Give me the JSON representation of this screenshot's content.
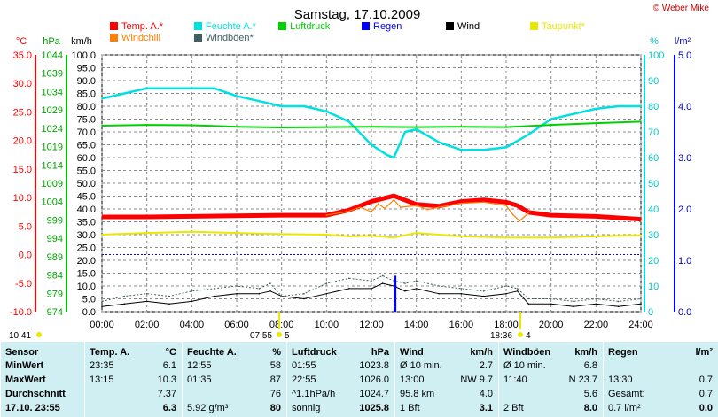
{
  "header": {
    "title": "Samstag, 17.10.2009",
    "copyright": "© Weber Mike",
    "sunrise_label": "10:41",
    "sunrise_marker": "07:55",
    "sunrise_value": "5",
    "sunset_marker": "18:36",
    "sunset_value": "4"
  },
  "colors": {
    "temp": "#ff0000",
    "humidity": "#00e0e0",
    "pressure": "#00d000",
    "rain": "#0000ff",
    "wind": "#000000",
    "dewpoint": "#e8e800",
    "windchill": "#ff8000",
    "gust": "#406060"
  },
  "legend": [
    {
      "label": "Temp. A.*",
      "color": "#ff0000",
      "col": 0,
      "row": 0
    },
    {
      "label": "Feuchte A.*",
      "color": "#00e0e0",
      "col": 1,
      "row": 0
    },
    {
      "label": "Luftdruck",
      "color": "#00d000",
      "col": 2,
      "row": 0
    },
    {
      "label": "Regen",
      "color": "#0000ff",
      "col": 3,
      "row": 0
    },
    {
      "label": "Wind",
      "color": "#000000",
      "col": 4,
      "row": 0
    },
    {
      "label": "Taupunkt*",
      "color": "#e8e800",
      "col": 5,
      "row": 0
    },
    {
      "label": "Windchill",
      "color": "#ff8000",
      "col": 0,
      "row": 1
    },
    {
      "label": "Windböen*",
      "color": "#406060",
      "col": 1,
      "row": 1
    }
  ],
  "chart_data": {
    "type": "line",
    "title": "Samstag, 17.10.2009",
    "axes": {
      "temp": {
        "unit": "°C",
        "range": [
          -10,
          35
        ],
        "ticks": [
          "35.0",
          "30.0",
          "25.0",
          "20.0",
          "15.0",
          "10.0",
          "5.0",
          "0.0",
          "-5.0",
          "-10.0"
        ]
      },
      "pressure": {
        "unit": "hPa",
        "range": [
          974,
          1044
        ],
        "ticks": [
          "1044",
          "1039",
          "1034",
          "1029",
          "1024",
          "1019",
          "1014",
          "1009",
          "1004",
          "999",
          "994",
          "989",
          "984",
          "979",
          "974"
        ]
      },
      "wind": {
        "unit": "km/h",
        "range": [
          0,
          100
        ],
        "ticks": [
          "100.0",
          "95.0",
          "90.0",
          "85.0",
          "80.0",
          "75.0",
          "70.0",
          "65.0",
          "60.0",
          "55.0",
          "50.0",
          "45.0",
          "40.0",
          "35.0",
          "30.0",
          "25.0",
          "20.0",
          "15.0",
          "10.0",
          "5.0",
          "0.0"
        ]
      },
      "humidity": {
        "unit": "%",
        "range": [
          0,
          100
        ],
        "ticks": [
          "100",
          "90",
          "80",
          "70",
          "60",
          "50",
          "40",
          "30",
          "20",
          "10",
          "0"
        ]
      },
      "rain": {
        "unit": "l/m²",
        "range": [
          0,
          5
        ],
        "ticks": [
          "5.0",
          "4.0",
          "3.0",
          "2.0",
          "1.0",
          "0.0"
        ]
      },
      "x": {
        "ticks": [
          "00:00",
          "02:00",
          "04:00",
          "06:00",
          "08:00",
          "10:00",
          "12:00",
          "14:00",
          "16:00",
          "18:00",
          "20:00",
          "22:00",
          "24:00"
        ],
        "range": [
          0,
          24
        ]
      }
    },
    "grid": true,
    "series": [
      {
        "name": "Temp. A.*",
        "axis": "temp",
        "color": "#ff0000",
        "x": [
          0,
          2,
          4,
          6,
          8,
          10,
          11,
          12,
          13,
          14,
          15,
          16,
          17,
          18,
          18.5,
          19,
          20,
          22,
          24
        ],
        "y": [
          6.6,
          6.6,
          6.7,
          6.8,
          6.9,
          6.9,
          7.8,
          9.3,
          10.3,
          8.8,
          8.5,
          9.3,
          9.6,
          9.2,
          8.6,
          7.4,
          6.9,
          6.7,
          6.2
        ]
      },
      {
        "name": "Feuchte A.*",
        "axis": "humidity",
        "color": "#00e0e0",
        "x": [
          0,
          2,
          3,
          4,
          5,
          6,
          7,
          8,
          9,
          10,
          11,
          12,
          12.7,
          13,
          13.5,
          14,
          15,
          16,
          17,
          18,
          19,
          20,
          21,
          22,
          23,
          24
        ],
        "y": [
          83,
          87,
          87,
          87,
          87,
          84,
          82,
          80,
          80,
          78,
          74,
          65,
          61,
          60,
          70,
          71,
          66,
          63,
          63,
          64,
          69,
          75,
          77,
          79,
          80,
          80
        ]
      },
      {
        "name": "Luftdruck",
        "axis": "pressure",
        "color": "#00d000",
        "x": [
          0,
          2,
          4,
          6,
          8,
          10,
          12,
          14,
          16,
          18,
          20,
          22,
          24
        ],
        "y": [
          1024.7,
          1024.9,
          1024.8,
          1024.4,
          1024.2,
          1024.3,
          1024.4,
          1024.3,
          1024.4,
          1024.3,
          1024.9,
          1025.4,
          1025.8
        ]
      },
      {
        "name": "Taupunkt*",
        "axis": "temp",
        "color": "#e8e800",
        "x": [
          0,
          2,
          4,
          6,
          8,
          10,
          11,
          12,
          13,
          14,
          16,
          18,
          20,
          22,
          24
        ],
        "y": [
          3.5,
          3.8,
          4.0,
          3.8,
          3.6,
          3.5,
          3.2,
          3.3,
          3.0,
          3.8,
          3.2,
          3.0,
          3.0,
          3.2,
          3.4
        ]
      },
      {
        "name": "Wind",
        "axis": "wind",
        "color": "#000000",
        "x": [
          0,
          1,
          2,
          3,
          4,
          5,
          6,
          7,
          7.5,
          8,
          9,
          10,
          11,
          12,
          12.5,
          13,
          13.5,
          14,
          15,
          16,
          17,
          18,
          18.5,
          19,
          20,
          21,
          22,
          23,
          24
        ],
        "y": [
          2,
          3,
          4,
          3,
          4,
          6,
          7,
          7,
          8,
          6,
          5,
          7,
          9,
          9,
          11,
          10,
          8,
          9,
          7,
          7,
          6,
          7,
          8,
          3,
          3,
          2,
          3,
          2,
          3
        ]
      },
      {
        "name": "Windböen*",
        "axis": "wind",
        "color": "#406060",
        "x": [
          0,
          1,
          2,
          3,
          4,
          5,
          6,
          7,
          7.5,
          8,
          9,
          10,
          11,
          12,
          12.5,
          13,
          13.5,
          14,
          15,
          16,
          17,
          18,
          18.5,
          19,
          20,
          21,
          22,
          23,
          24
        ],
        "y": [
          4,
          6,
          7,
          6,
          8,
          9,
          10,
          9,
          11,
          6,
          7,
          11,
          13,
          12,
          14,
          12,
          11,
          12,
          10,
          9,
          8,
          10,
          9,
          5,
          5,
          4,
          5,
          4,
          5
        ]
      },
      {
        "name": "Windchill",
        "axis": "temp",
        "color": "#ff8000",
        "x": [
          10,
          11,
          11.5,
          12,
          12.3,
          12.6,
          13,
          13.3,
          14,
          14.5,
          15,
          16,
          17,
          18,
          18.3,
          18.6,
          19
        ],
        "y": [
          6.9,
          7.6,
          8.3,
          7.5,
          8.9,
          8.1,
          9.6,
          8.3,
          8.6,
          7.9,
          8.3,
          9.0,
          9.2,
          8.6,
          7.0,
          5.9,
          7.3
        ]
      },
      {
        "name": "Regen",
        "axis": "rain",
        "color": "#0000ff",
        "x": [
          13.05
        ],
        "y": [
          0.7
        ]
      }
    ],
    "reference_lines": [
      {
        "axis": "temp",
        "value": 0,
        "style": "dotted",
        "color": "#0000ff"
      }
    ]
  },
  "table": {
    "columns": [
      {
        "title": "Sensor",
        "unit": ""
      },
      {
        "title": "Temp. A.",
        "unit": "°C"
      },
      {
        "title": "Feuchte A.",
        "unit": "%"
      },
      {
        "title": "Luftdruck",
        "unit": "hPa"
      },
      {
        "title": "Wind",
        "unit": "km/h"
      },
      {
        "title": "Windböen",
        "unit": "km/h"
      },
      {
        "title": "Regen",
        "unit": "l/m²"
      }
    ],
    "rows": [
      {
        "label": "MinWert",
        "cells": [
          [
            "23:35",
            "6.1"
          ],
          [
            "12:55",
            "58"
          ],
          [
            "01:55",
            "1023.8"
          ],
          [
            "Ø 10 min.",
            "2.7"
          ],
          [
            "Ø 10 min.",
            "6.8"
          ],
          [
            "",
            ""
          ]
        ]
      },
      {
        "label": "MaxWert",
        "cells": [
          [
            "13:15",
            "10.3"
          ],
          [
            "01:35",
            "87"
          ],
          [
            "22:55",
            "1026.0"
          ],
          [
            "13:00",
            "NW 9.7"
          ],
          [
            "11:40",
            "N 23.7"
          ],
          [
            "13:30",
            "0.7"
          ]
        ]
      },
      {
        "label": "Durchschnitt",
        "cells": [
          [
            "",
            "7.37"
          ],
          [
            "",
            "76"
          ],
          [
            "^1.1hPa/h",
            "1024.7"
          ],
          [
            "95.8 km",
            "4.0"
          ],
          [
            "",
            "5.6"
          ],
          [
            "Gesamt:",
            "0.7"
          ]
        ]
      },
      {
        "label": "17.10. 23:55",
        "cells": [
          [
            "",
            "6.3"
          ],
          [
            "5.92 g/m³",
            "80"
          ],
          [
            "sonnig",
            "1025.8"
          ],
          [
            "1 Bft",
            "3.1"
          ],
          [
            "2 Bft",
            "8.0"
          ],
          [
            "0.7 l/m²",
            "0.0"
          ]
        ]
      }
    ]
  }
}
